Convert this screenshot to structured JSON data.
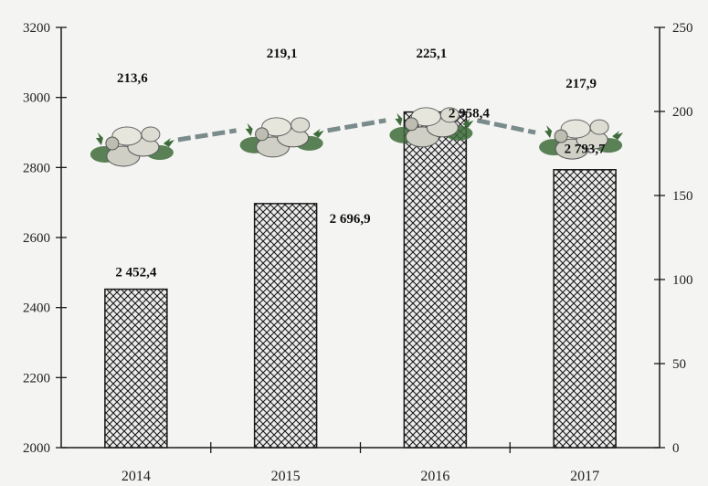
{
  "chart_data": {
    "type": "bar",
    "categories": [
      "2014",
      "2015",
      "2016",
      "2017"
    ],
    "series": [
      {
        "type": "bar",
        "axis": "left",
        "values": [
          2452.4,
          2696.9,
          2958.4,
          2793.7
        ],
        "labels": [
          "2 452,4",
          "2 696,9",
          "2 958,4",
          "2 793,7"
        ],
        "pattern": "crosshatch"
      },
      {
        "type": "line",
        "axis": "right",
        "values": [
          213.6,
          219.1,
          225.1,
          217.9
        ],
        "labels": [
          "213,6",
          "219,1",
          "225,1",
          "217,9"
        ],
        "marker": "vegetable-pile-icon",
        "line_style": "dashed"
      }
    ],
    "y_left": {
      "ylim": [
        2000,
        3200
      ],
      "ticks": [
        "2000",
        "2200",
        "2400",
        "2600",
        "2800",
        "3000",
        "3200"
      ]
    },
    "y_right": {
      "ylim": [
        0,
        250
      ],
      "ticks": [
        "0",
        "50",
        "100",
        "150",
        "200",
        "250"
      ]
    },
    "title": "",
    "xlabel": "",
    "ylabel": "",
    "grid": false,
    "colors": {
      "ink": "#1a1a1a",
      "line": "#7a8b8b",
      "veg_green": "#3e6b3a",
      "veg_light": "#d9d9d0"
    }
  }
}
